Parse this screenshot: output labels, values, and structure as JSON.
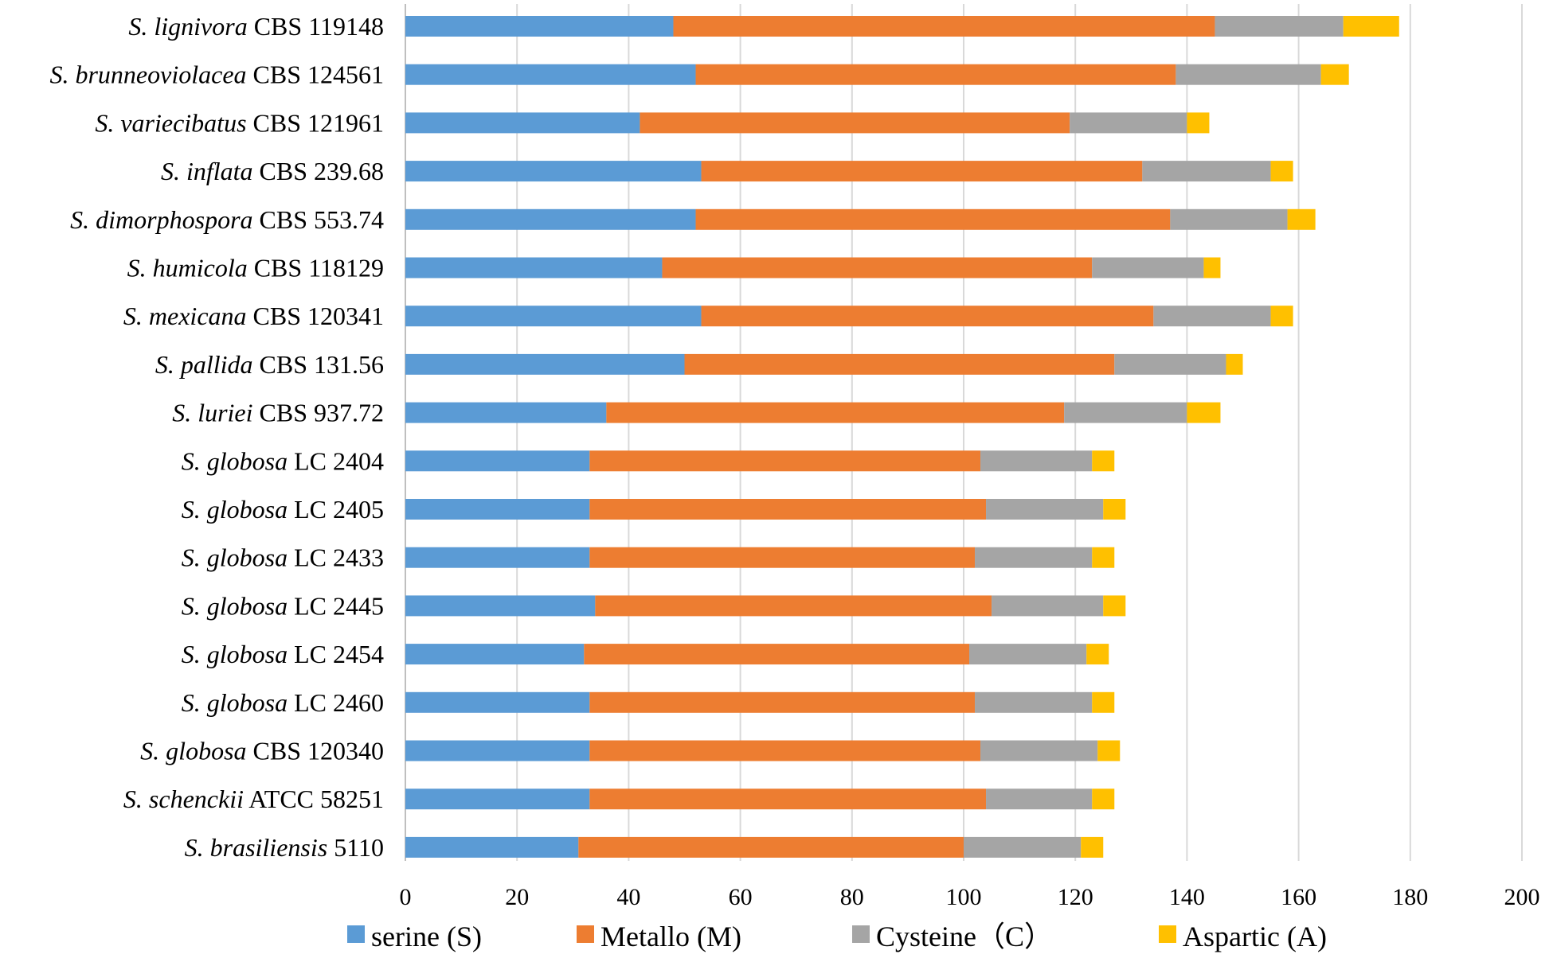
{
  "chart_data": {
    "type": "bar",
    "orientation": "horizontal",
    "stacked": true,
    "title": "",
    "xlabel": "",
    "ylabel": "",
    "xlim": [
      0,
      200
    ],
    "x_ticks": [
      0,
      20,
      40,
      60,
      80,
      100,
      120,
      140,
      160,
      180,
      200
    ],
    "grid": true,
    "legend_position": "bottom",
    "categories": [
      {
        "species": "S. lignivora",
        "strain": "CBS 119148"
      },
      {
        "species": "S. brunneoviolacea",
        "strain": "CBS 124561"
      },
      {
        "species": "S. variecibatus",
        "strain": "CBS 121961"
      },
      {
        "species": "S. inflata",
        "strain": "CBS 239.68"
      },
      {
        "species": "S. dimorphospora",
        "strain": "CBS 553.74"
      },
      {
        "species": "S. humicola",
        "strain": "CBS 118129"
      },
      {
        "species": "S. mexicana",
        "strain": "CBS 120341"
      },
      {
        "species": "S. pallida",
        "strain": "CBS 131.56"
      },
      {
        "species": "S. luriei",
        "strain": "CBS 937.72"
      },
      {
        "species": "S. globosa",
        "strain": "LC 2404"
      },
      {
        "species": "S. globosa",
        "strain": "LC 2405"
      },
      {
        "species": "S. globosa",
        "strain": "LC 2433"
      },
      {
        "species": "S. globosa",
        "strain": "LC 2445"
      },
      {
        "species": "S. globosa",
        "strain": "LC 2454"
      },
      {
        "species": "S. globosa",
        "strain": "LC 2460"
      },
      {
        "species": "S. globosa",
        "strain": "CBS 120340"
      },
      {
        "species": "S. schenckii",
        "strain": "ATCC 58251"
      },
      {
        "species": "S. brasiliensis",
        "strain": "5110"
      }
    ],
    "series": [
      {
        "name": "serine (S)",
        "color": "#5b9bd5",
        "values": [
          48,
          52,
          42,
          53,
          52,
          46,
          53,
          50,
          36,
          33,
          33,
          33,
          34,
          32,
          33,
          33,
          33,
          31
        ]
      },
      {
        "name": "Metallo (M)",
        "color": "#ed7d31",
        "values": [
          97,
          86,
          77,
          79,
          85,
          77,
          81,
          77,
          82,
          70,
          71,
          69,
          71,
          69,
          69,
          70,
          71,
          69
        ]
      },
      {
        "name": "Cysteine（C）",
        "color": "#a5a5a5",
        "values": [
          23,
          26,
          21,
          23,
          21,
          20,
          21,
          20,
          22,
          20,
          21,
          21,
          20,
          21,
          21,
          21,
          19,
          21
        ]
      },
      {
        "name": "Aspartic (A)",
        "color": "#ffc000",
        "values": [
          10,
          5,
          4,
          4,
          5,
          3,
          4,
          3,
          6,
          4,
          4,
          4,
          4,
          4,
          4,
          4,
          4,
          4
        ]
      }
    ]
  }
}
